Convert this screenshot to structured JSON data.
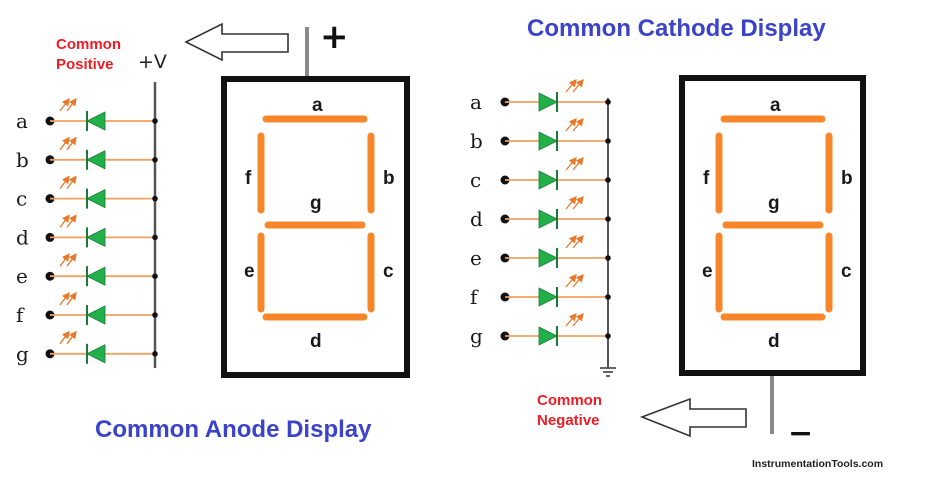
{
  "anode": {
    "title": "Common Anode Display",
    "label_line1": "Common",
    "label_line2": "Positive",
    "supply": "+V",
    "polarity": "+",
    "pins": [
      "a",
      "b",
      "c",
      "d",
      "e",
      "f",
      "g"
    ]
  },
  "cathode": {
    "title": "Common Cathode Display",
    "label_line1": "Common",
    "label_line2": "Negative",
    "polarity": "−",
    "pins": [
      "a",
      "b",
      "c",
      "d",
      "e",
      "f",
      "g"
    ]
  },
  "segments": {
    "a": "a",
    "b": "b",
    "c": "c",
    "d": "d",
    "e": "e",
    "f": "f",
    "g": "g"
  },
  "credit": "InstrumentationTools.com",
  "colors": {
    "segment": "#f7862a",
    "diode": "#22b04b",
    "wire": "#f0a060",
    "title": "#3b44c8",
    "label": "#ee1c24",
    "frame": "#111111",
    "bus": "#555555"
  }
}
